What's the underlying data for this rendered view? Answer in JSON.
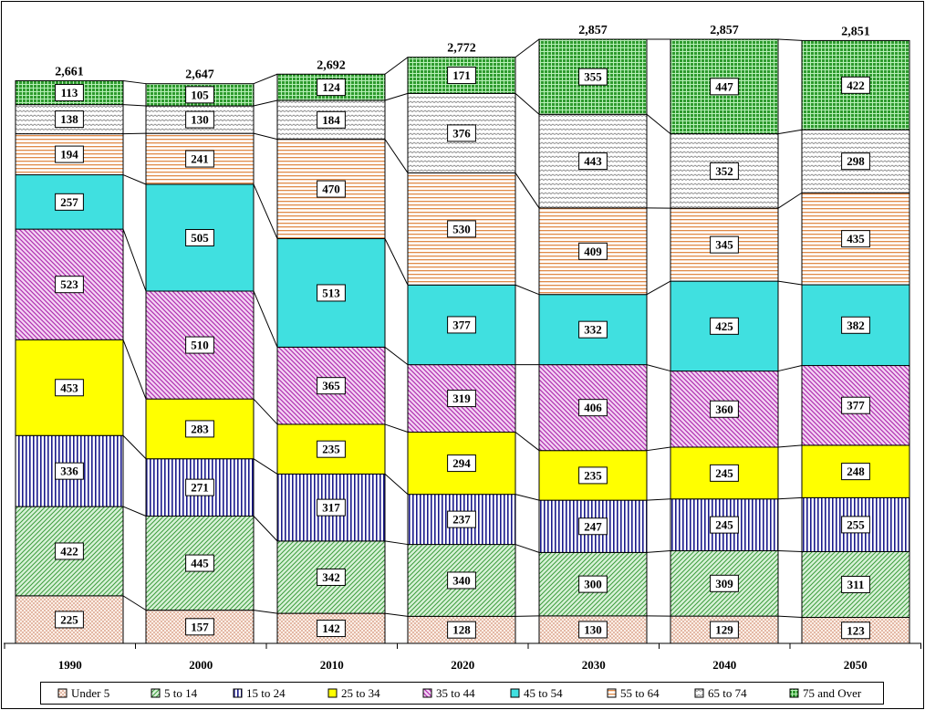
{
  "chart_data": {
    "type": "bar",
    "stacked": true,
    "categories": [
      "1990",
      "2000",
      "2010",
      "2020",
      "2030",
      "2040",
      "2050"
    ],
    "totals": [
      "2,661",
      "2,647",
      "2,692",
      "2,772",
      "2,857",
      "2,857",
      "2,851"
    ],
    "series": [
      {
        "name": "Under 5",
        "values": [
          225,
          157,
          142,
          128,
          130,
          129,
          123
        ],
        "color": "#f4d7c8",
        "pattern": "dots"
      },
      {
        "name": "5 to 14",
        "values": [
          422,
          445,
          342,
          340,
          300,
          309,
          311
        ],
        "color": "#a8e0a8",
        "pattern": "diagonal-up"
      },
      {
        "name": "15 to 24",
        "values": [
          336,
          271,
          317,
          237,
          247,
          245,
          255
        ],
        "color": "#1a1a8c",
        "pattern": "vertical-lines"
      },
      {
        "name": "25 to 34",
        "values": [
          453,
          283,
          235,
          294,
          235,
          245,
          248
        ],
        "color": "#ffff00",
        "pattern": "solid"
      },
      {
        "name": "35 to 44",
        "values": [
          523,
          510,
          365,
          319,
          406,
          360,
          377
        ],
        "color": "#c040c0",
        "pattern": "diagonal-down"
      },
      {
        "name": "45 to 54",
        "values": [
          257,
          505,
          513,
          377,
          332,
          425,
          382
        ],
        "color": "#40e0e0",
        "pattern": "solid"
      },
      {
        "name": "55 to 64",
        "values": [
          194,
          241,
          470,
          530,
          409,
          345,
          435
        ],
        "color": "#f0a060",
        "pattern": "horizontal-lines"
      },
      {
        "name": "65 to 74",
        "values": [
          138,
          130,
          184,
          376,
          443,
          352,
          298
        ],
        "color": "#909090",
        "pattern": "waves"
      },
      {
        "name": "75 and Over",
        "values": [
          113,
          105,
          124,
          171,
          355,
          447,
          422
        ],
        "color": "#40b040",
        "pattern": "grid"
      }
    ],
    "ylim": [
      0,
      2900
    ],
    "grid": false,
    "legend_position": "bottom"
  }
}
